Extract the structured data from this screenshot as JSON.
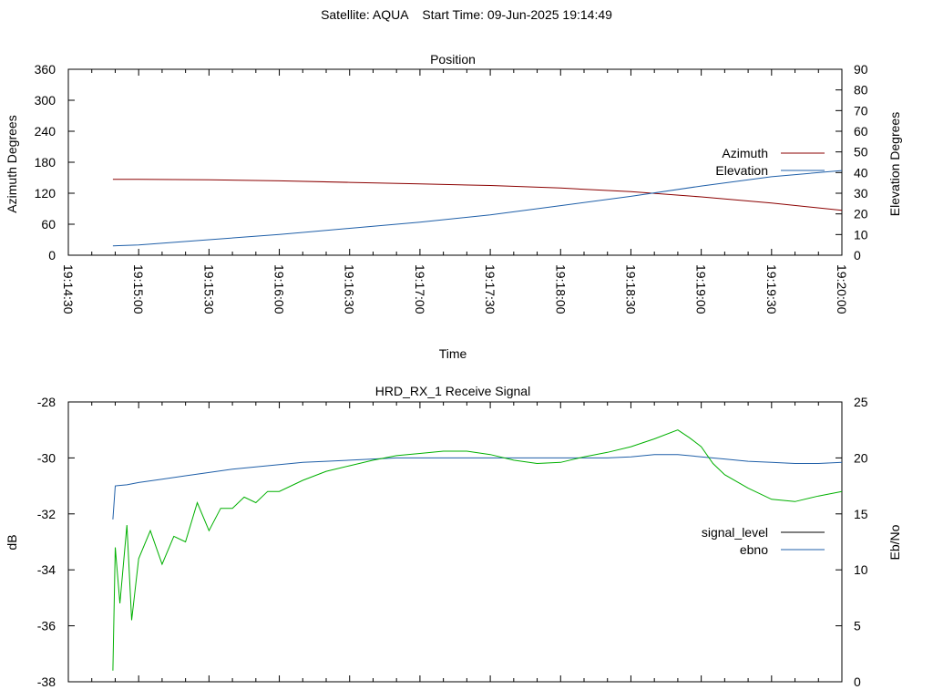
{
  "header": {
    "title": "Satellite: AQUA    Start Time: 09-Jun-2025 19:14:49"
  },
  "chart_data": [
    {
      "type": "line",
      "title": "Position",
      "xlabel": "Time",
      "ylabel": "Azimuth Degrees",
      "y2label": "Elevation Degrees",
      "x_tick_labels": [
        "19:14:30",
        "19:15:00",
        "19:15:30",
        "19:16:00",
        "19:16:30",
        "19:17:00",
        "19:17:30",
        "19:18:00",
        "19:18:30",
        "19:19:00",
        "19:19:30",
        "19:20:00"
      ],
      "xlim": [
        "19:14:30",
        "19:20:00"
      ],
      "ylim": [
        0,
        360
      ],
      "y_ticks": [
        0,
        60,
        120,
        180,
        240,
        300,
        360
      ],
      "y2lim": [
        0,
        90
      ],
      "y2_ticks": [
        0,
        10,
        20,
        30,
        40,
        50,
        60,
        70,
        80,
        90
      ],
      "legend_position": "right",
      "series": [
        {
          "name": "Azimuth",
          "axis": "left",
          "color": "#8b0000",
          "x": [
            "19:14:49",
            "19:15:00",
            "19:15:30",
            "19:16:00",
            "19:16:30",
            "19:17:00",
            "19:17:30",
            "19:18:00",
            "19:18:30",
            "19:19:00",
            "19:19:30",
            "19:20:00"
          ],
          "values": [
            147,
            147,
            146,
            144,
            141,
            138,
            135,
            130,
            123,
            113,
            101,
            87
          ]
        },
        {
          "name": "Elevation",
          "axis": "right",
          "color": "#1f5fa8",
          "x": [
            "19:14:49",
            "19:15:00",
            "19:15:30",
            "19:16:00",
            "19:16:30",
            "19:17:00",
            "19:17:30",
            "19:18:00",
            "19:18:30",
            "19:19:00",
            "19:19:30",
            "19:20:00"
          ],
          "values": [
            4.5,
            5,
            7.5,
            10,
            13,
            16,
            19.5,
            24,
            28.5,
            33.5,
            38,
            41
          ]
        }
      ]
    },
    {
      "type": "line",
      "title": "HRD_RX_1 Receive Signal",
      "xlabel": "",
      "ylabel": "dB",
      "y2label": "Eb/No",
      "xlim": [
        "19:14:30",
        "19:20:00"
      ],
      "ylim": [
        -38,
        -28
      ],
      "y_ticks": [
        -38,
        -36,
        -34,
        -32,
        -30,
        -28
      ],
      "y2lim": [
        0,
        25
      ],
      "y2_ticks": [
        0,
        5,
        10,
        15,
        20,
        25
      ],
      "legend_position": "right",
      "series": [
        {
          "name": "signal_level",
          "axis": "left",
          "color": "#000000",
          "x": [],
          "values": []
        },
        {
          "name": "ebno",
          "axis": "right",
          "color": "#1f5fa8",
          "x": [
            "19:14:49",
            "19:14:50",
            "19:14:55",
            "19:15:00",
            "19:15:10",
            "19:15:20",
            "19:15:30",
            "19:15:40",
            "19:15:50",
            "19:16:00",
            "19:16:10",
            "19:16:20",
            "19:16:30",
            "19:16:40",
            "19:16:50",
            "19:17:00",
            "19:17:10",
            "19:17:20",
            "19:17:30",
            "19:17:40",
            "19:17:50",
            "19:18:00",
            "19:18:10",
            "19:18:20",
            "19:18:30",
            "19:18:40",
            "19:18:50",
            "19:19:00",
            "19:19:10",
            "19:19:20",
            "19:19:30",
            "19:19:40",
            "19:19:50",
            "19:20:00"
          ],
          "values": [
            14.5,
            17.5,
            17.6,
            17.8,
            18.1,
            18.4,
            18.7,
            19.0,
            19.2,
            19.4,
            19.6,
            19.7,
            19.8,
            19.9,
            20.0,
            20.0,
            20.0,
            20.0,
            20.0,
            20.0,
            20.0,
            20.0,
            20.0,
            20.0,
            20.1,
            20.3,
            20.3,
            20.1,
            19.9,
            19.7,
            19.6,
            19.5,
            19.5,
            19.6
          ]
        },
        {
          "name": "",
          "axis": "right",
          "color": "#00b000",
          "x": [
            "19:14:49",
            "19:14:50",
            "19:14:52",
            "19:14:55",
            "19:14:57",
            "19:15:00",
            "19:15:05",
            "19:15:10",
            "19:15:15",
            "19:15:20",
            "19:15:25",
            "19:15:30",
            "19:15:35",
            "19:15:40",
            "19:15:45",
            "19:15:50",
            "19:15:55",
            "19:16:00",
            "19:16:10",
            "19:16:20",
            "19:16:30",
            "19:16:40",
            "19:16:50",
            "19:17:00",
            "19:17:10",
            "19:17:20",
            "19:17:30",
            "19:17:40",
            "19:17:50",
            "19:18:00",
            "19:18:10",
            "19:18:20",
            "19:18:30",
            "19:18:40",
            "19:18:50",
            "19:18:55",
            "19:19:00",
            "19:19:05",
            "19:19:10",
            "19:19:20",
            "19:19:30",
            "19:19:40",
            "19:19:50",
            "19:20:00"
          ],
          "values": [
            1,
            12,
            7,
            14,
            5.5,
            11,
            13.5,
            10.5,
            13,
            12.5,
            16,
            13.5,
            15.5,
            15.5,
            16.5,
            16,
            17,
            17,
            18,
            18.8,
            19.3,
            19.8,
            20.2,
            20.4,
            20.6,
            20.6,
            20.3,
            19.8,
            19.5,
            19.6,
            20.1,
            20.5,
            21.0,
            21.7,
            22.5,
            21.8,
            21.0,
            19.5,
            18.5,
            17.3,
            16.3,
            16.1,
            16.6,
            17.0
          ]
        }
      ]
    }
  ]
}
